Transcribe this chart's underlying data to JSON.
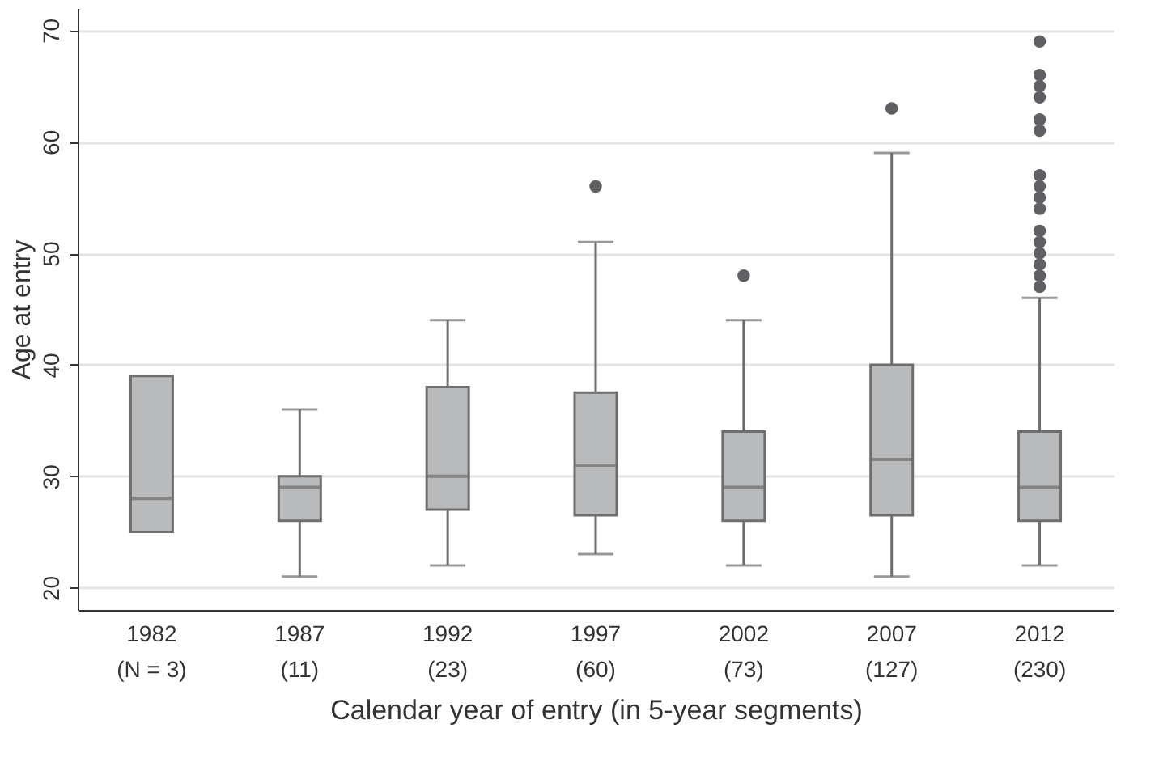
{
  "chart_data": {
    "type": "box",
    "xlabel": "Calendar year of entry (in 5-year segments)",
    "ylabel": "Age at entry",
    "categories": [
      "1982\n(N = 3)",
      "1987\n(11)",
      "1992\n(23)",
      "1997\n(60)",
      "2002\n(73)",
      "2007\n(127)",
      "2012\n(230)"
    ],
    "ylim": [
      18,
      72
    ],
    "yticks": [
      20,
      30,
      40,
      50,
      60,
      70
    ],
    "grid": "y",
    "series": [
      {
        "color": "#b9babc",
        "boxes": [
          {
            "low": 25,
            "q1": 25,
            "median": 28,
            "q3": 39,
            "high": 39
          },
          {
            "low": 21,
            "q1": 26,
            "median": 29,
            "q3": 30,
            "high": 36
          },
          {
            "low": 22,
            "q1": 27,
            "median": 30,
            "q3": 38,
            "high": 44
          },
          {
            "low": 23,
            "q1": 26.5,
            "median": 31,
            "q3": 37.5,
            "high": 51,
            "outliers": [
              56
            ]
          },
          {
            "low": 22,
            "q1": 26,
            "median": 29,
            "q3": 34,
            "high": 44,
            "outliers": [
              48
            ]
          },
          {
            "low": 21,
            "q1": 26.5,
            "median": 31.5,
            "q3": 40,
            "high": 59,
            "outliers": [
              63
            ]
          },
          {
            "low": 22,
            "q1": 26,
            "median": 29,
            "q3": 34,
            "high": 46,
            "outliers": [
              47,
              48,
              49,
              50,
              51,
              52,
              54,
              55,
              56,
              57,
              61,
              62,
              64,
              65,
              66,
              69
            ]
          }
        ]
      }
    ]
  }
}
